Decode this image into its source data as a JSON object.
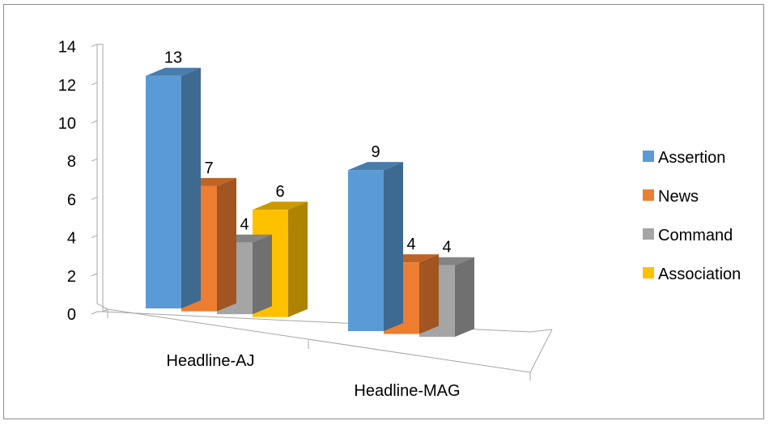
{
  "chart_data": {
    "type": "bar",
    "style": "3d-clustered-column",
    "categories": [
      "Headline-AJ",
      "Headline-MAG"
    ],
    "series": [
      {
        "name": "Assertion",
        "color": "#5b9bd5",
        "values": [
          13,
          9
        ]
      },
      {
        "name": "News",
        "color": "#ed7d31",
        "values": [
          7,
          4
        ]
      },
      {
        "name": "Command",
        "color": "#a5a5a5",
        "values": [
          4,
          4
        ]
      },
      {
        "name": "Association",
        "color": "#ffc000",
        "values": [
          6,
          null
        ]
      }
    ],
    "y_ticks": [
      "0",
      "2",
      "4",
      "6",
      "8",
      "10",
      "12",
      "14"
    ],
    "ylim": [
      0,
      14
    ],
    "grid": false,
    "legend_position": "right",
    "data_labels": true
  }
}
